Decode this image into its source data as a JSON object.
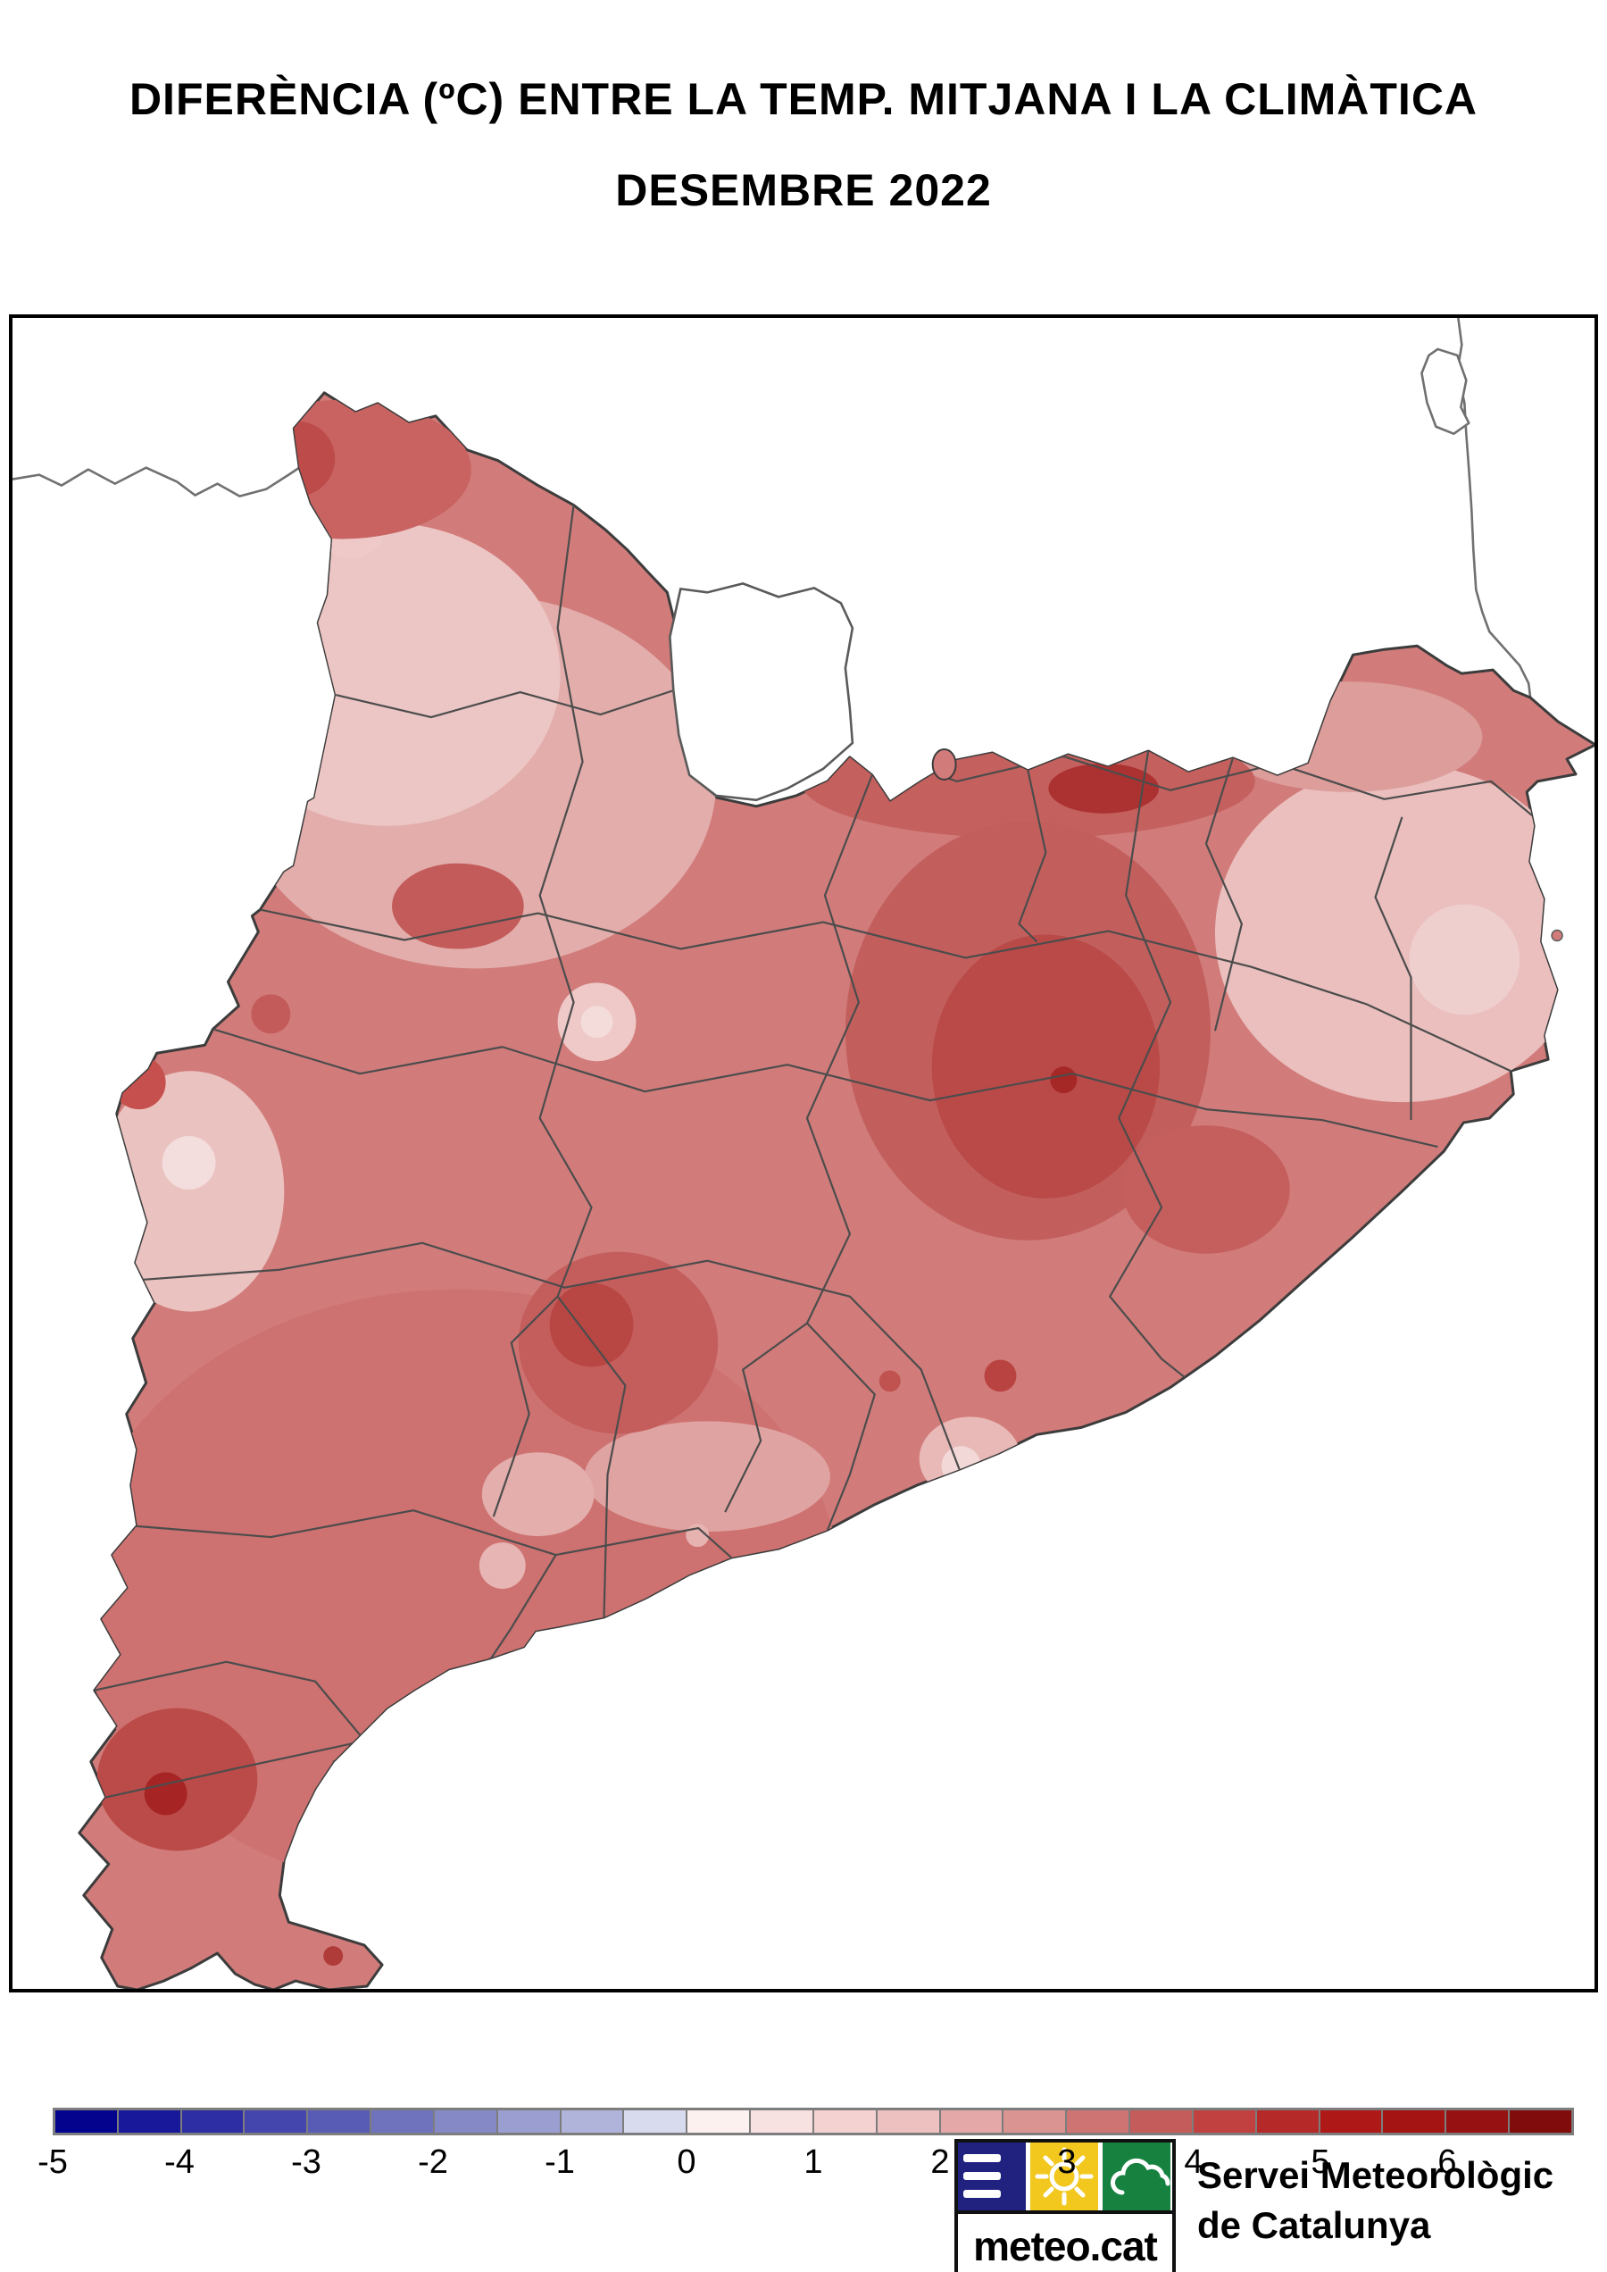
{
  "header": {
    "title": "DIFERÈNCIA (ºC) ENTRE LA TEMP. MITJANA I LA CLIMÀTICA",
    "subtitle": "DESEMBRE 2022"
  },
  "map": {
    "sea_color": "#ffffff",
    "land_base_color": "#d17c7a",
    "region_outline_color": "#3c3c3c",
    "comarca_line_color": "#4c4c4c",
    "neighbor_line_color": "#707070"
  },
  "colorbar": {
    "min": -5,
    "max": 7,
    "step": 0.5,
    "tick_labels": [
      "-5",
      "-4",
      "-3",
      "-2",
      "-1",
      "0",
      "1",
      "2",
      "3",
      "4",
      "5",
      "6"
    ],
    "cell_colors": [
      "#03038d",
      "#18189b",
      "#2e2ea4",
      "#4446ad",
      "#595cb5",
      "#6f73be",
      "#858ac7",
      "#9b9ed0",
      "#b1b4da",
      "#d8daed",
      "#fdf1f0",
      "#f8e2e1",
      "#f3d2d1",
      "#edc1c0",
      "#e3a8a7",
      "#da9492",
      "#ce7472",
      "#c35c5a",
      "#c04140",
      "#b52a29",
      "#ae1918",
      "#a31413",
      "#961111",
      "#800c0c"
    ],
    "frame_color": "#7d7d7d"
  },
  "branding": {
    "logo_text": "meteo.cat",
    "org_name_line1": "Servei Meteorològic",
    "org_name_line2": "de Catalunya",
    "logo_blue": "#21217f",
    "logo_yellow": "#f2c71e",
    "logo_green": "#178240"
  }
}
